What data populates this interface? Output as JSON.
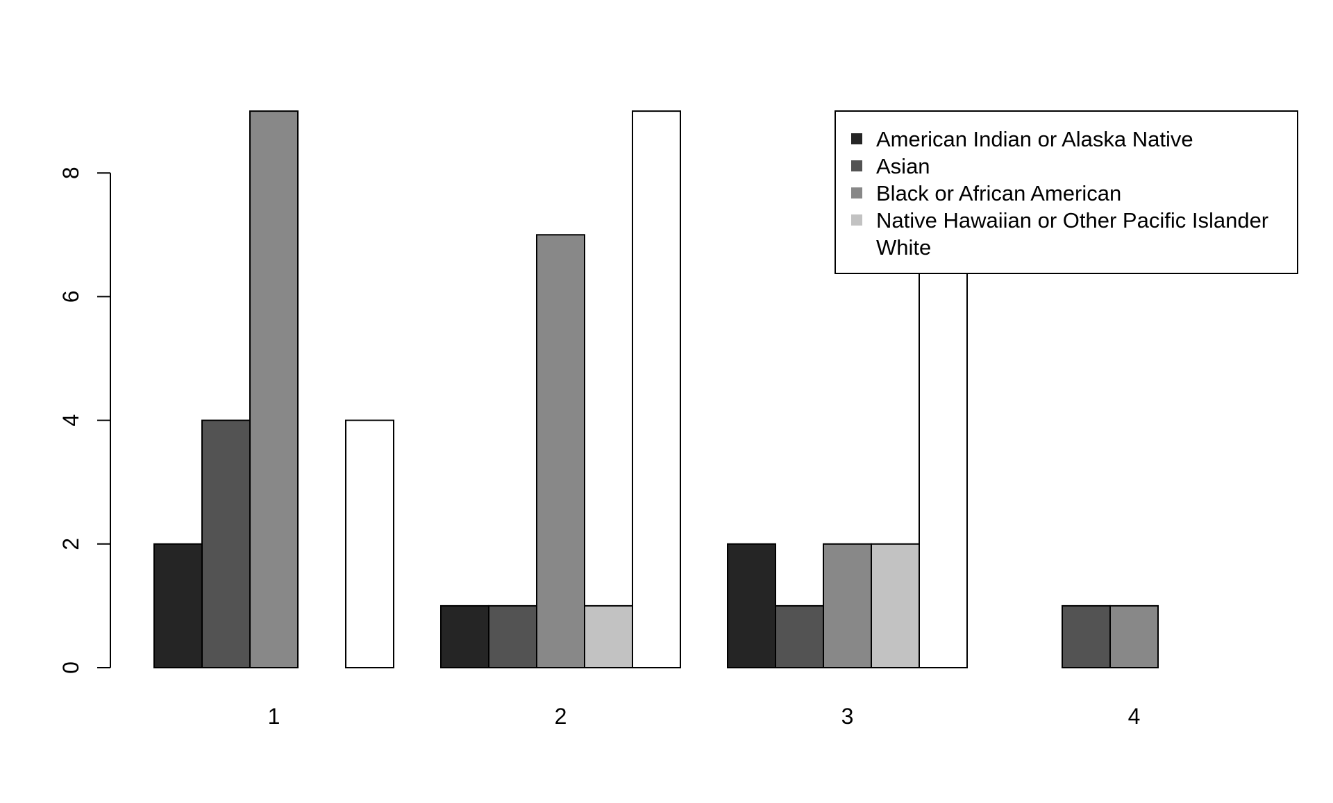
{
  "chart_data": {
    "type": "bar",
    "categories": [
      "1",
      "2",
      "3",
      "4"
    ],
    "series": [
      {
        "name": "American Indian or Alaska Native",
        "color": "#252525",
        "values": [
          2,
          1,
          2,
          0
        ]
      },
      {
        "name": "Asian",
        "color": "#535353",
        "values": [
          4,
          1,
          1,
          1
        ]
      },
      {
        "name": "Black or African American",
        "color": "#888888",
        "values": [
          9,
          7,
          2,
          1
        ]
      },
      {
        "name": "Native Hawaiian or Other Pacific Islander",
        "color": "#c2c2c2",
        "values": [
          0,
          1,
          2,
          0
        ]
      },
      {
        "name": "White",
        "color": "#ffffff",
        "values": [
          4,
          9,
          9,
          0
        ]
      }
    ],
    "yticks": [
      "0",
      "2",
      "4",
      "6",
      "8"
    ],
    "ylim": [
      0,
      9
    ],
    "grid": false,
    "legend_position": "top-right",
    "title": "",
    "xlabel": "",
    "ylabel": ""
  }
}
